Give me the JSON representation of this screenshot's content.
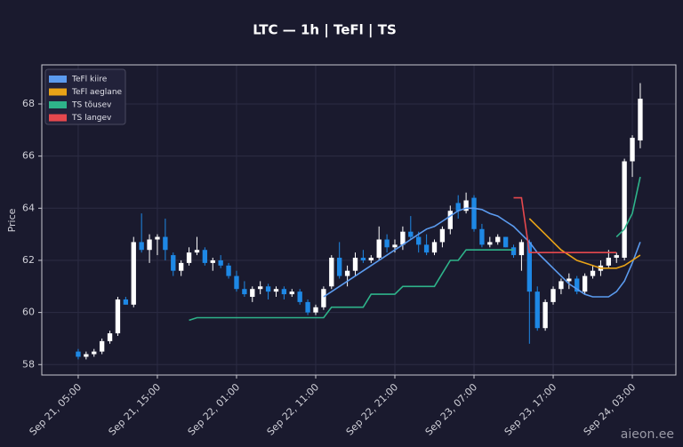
{
  "chart_data": {
    "type": "candlestick",
    "title": "LTC — 1h  |  TeFl  |  TS",
    "ylabel": "Price",
    "watermark": "aieon.ee",
    "grid": true,
    "legend": "upper left",
    "up_color": "#ffffff",
    "down_color": "#1e88e5",
    "xlim": [
      -4.6,
      75.5
    ],
    "xticks": [
      {
        "value": 0,
        "label": "Sep 21, 05:00"
      },
      {
        "value": 10,
        "label": "Sep 21, 15:00"
      },
      {
        "value": 20,
        "label": "Sep 22, 01:00"
      },
      {
        "value": 30,
        "label": "Sep 22, 11:00"
      },
      {
        "value": 40,
        "label": "Sep 22, 21:00"
      },
      {
        "value": 50,
        "label": "Sep 23, 07:00"
      },
      {
        "value": 60,
        "label": "Sep 23, 17:00"
      },
      {
        "value": 70,
        "label": "Sep 24, 03:00"
      }
    ],
    "ylim": [
      57.6,
      69.5
    ],
    "yticks": [
      58,
      60,
      62,
      64,
      66,
      68
    ],
    "open": [
      58.5,
      58.3,
      58.4,
      58.5,
      58.9,
      59.2,
      60.5,
      60.3,
      62.7,
      62.4,
      62.8,
      62.9,
      62.2,
      61.6,
      61.9,
      62.3,
      62.4,
      61.9,
      62.0,
      61.8,
      61.4,
      60.9,
      60.6,
      60.9,
      61.0,
      60.8,
      60.9,
      60.7,
      60.8,
      60.4,
      60.0,
      60.2,
      61.0,
      62.1,
      61.4,
      61.6,
      62.1,
      62.0,
      62.1,
      62.8,
      62.5,
      62.6,
      63.1,
      62.9,
      62.6,
      62.3,
      62.7,
      63.2,
      64.2,
      63.9,
      64.4,
      63.2,
      62.6,
      62.7,
      62.9,
      62.5,
      62.2,
      62.7,
      60.8,
      59.4,
      60.4,
      60.9,
      61.2,
      61.3,
      60.8,
      61.4,
      61.6,
      61.8,
      62.1,
      62.1,
      65.8,
      66.6
    ],
    "high": [
      58.6,
      58.5,
      58.6,
      59.0,
      59.3,
      60.6,
      60.6,
      62.9,
      63.8,
      63.0,
      63.0,
      63.6,
      62.3,
      62.0,
      62.5,
      62.9,
      62.5,
      62.1,
      62.2,
      61.9,
      61.6,
      61.2,
      61.0,
      61.2,
      61.1,
      61.0,
      61.0,
      60.9,
      60.9,
      60.5,
      60.3,
      61.0,
      62.2,
      62.7,
      61.8,
      62.3,
      62.4,
      62.2,
      63.3,
      63.0,
      62.8,
      63.3,
      63.7,
      63.1,
      63.0,
      62.8,
      63.3,
      64.1,
      64.5,
      64.6,
      64.5,
      63.4,
      62.9,
      63.0,
      62.9,
      62.6,
      62.8,
      62.8,
      61.0,
      60.5,
      61.0,
      61.3,
      61.5,
      61.4,
      61.5,
      61.8,
      62.0,
      62.4,
      62.3,
      65.9,
      66.8,
      68.8
    ],
    "low": [
      58.2,
      58.2,
      58.3,
      58.4,
      58.8,
      59.1,
      60.3,
      60.2,
      62.3,
      61.9,
      62.2,
      62.0,
      61.4,
      61.4,
      61.8,
      62.2,
      61.8,
      61.6,
      61.7,
      61.3,
      60.8,
      60.6,
      60.4,
      60.7,
      60.5,
      60.6,
      60.5,
      60.6,
      60.3,
      59.9,
      59.9,
      60.1,
      60.9,
      61.3,
      61.0,
      61.4,
      61.9,
      61.9,
      62.0,
      62.3,
      62.3,
      62.4,
      62.8,
      62.3,
      62.2,
      62.2,
      62.5,
      63.0,
      63.6,
      63.8,
      63.1,
      62.5,
      62.5,
      62.6,
      62.5,
      62.1,
      61.6,
      58.8,
      59.3,
      59.3,
      60.3,
      60.7,
      60.9,
      60.7,
      60.7,
      61.3,
      61.4,
      61.7,
      61.9,
      62.0,
      65.2,
      66.3
    ],
    "close": [
      58.3,
      58.4,
      58.5,
      58.9,
      59.2,
      60.5,
      60.3,
      62.7,
      62.4,
      62.8,
      62.9,
      62.4,
      61.6,
      61.9,
      62.3,
      62.4,
      61.9,
      62.0,
      61.8,
      61.4,
      60.9,
      60.7,
      60.9,
      61.0,
      60.8,
      60.9,
      60.7,
      60.8,
      60.4,
      60.0,
      60.2,
      60.9,
      62.1,
      61.4,
      61.6,
      62.1,
      62.0,
      62.1,
      62.8,
      62.5,
      62.6,
      63.1,
      62.9,
      62.6,
      62.3,
      62.7,
      63.2,
      63.9,
      63.9,
      64.3,
      63.2,
      62.6,
      62.7,
      62.9,
      62.5,
      62.2,
      62.7,
      60.8,
      59.4,
      60.4,
      60.9,
      61.2,
      61.3,
      60.8,
      61.4,
      61.6,
      61.8,
      62.1,
      62.2,
      65.8,
      66.7,
      68.2
    ],
    "series": [
      {
        "name": "TeFl kiire",
        "color": "#5b9bef",
        "values": [
          null,
          null,
          null,
          null,
          null,
          null,
          null,
          null,
          null,
          null,
          null,
          null,
          null,
          null,
          null,
          null,
          null,
          null,
          null,
          null,
          null,
          null,
          null,
          null,
          null,
          null,
          null,
          null,
          null,
          null,
          null,
          60.6,
          60.8,
          61.0,
          61.2,
          61.4,
          61.6,
          61.8,
          62.0,
          62.2,
          62.4,
          62.6,
          62.8,
          63.0,
          63.2,
          63.3,
          63.5,
          63.7,
          63.9,
          64.0,
          64.0,
          63.95,
          63.8,
          63.7,
          63.5,
          63.3,
          63.0,
          62.7,
          62.3,
          62.0,
          61.7,
          61.4,
          61.1,
          60.9,
          60.7,
          60.6,
          60.6,
          60.6,
          60.8,
          61.2,
          61.9,
          62.7
        ]
      },
      {
        "name": "TeFl aeglane",
        "color": "#e8a317",
        "values": [
          null,
          null,
          null,
          null,
          null,
          null,
          null,
          null,
          null,
          null,
          null,
          null,
          null,
          null,
          null,
          null,
          null,
          null,
          null,
          null,
          null,
          null,
          null,
          null,
          null,
          null,
          null,
          null,
          null,
          null,
          null,
          null,
          null,
          null,
          null,
          null,
          null,
          null,
          null,
          null,
          null,
          null,
          null,
          null,
          null,
          null,
          null,
          null,
          null,
          null,
          null,
          null,
          null,
          null,
          null,
          null,
          null,
          63.6,
          63.3,
          63.0,
          62.7,
          62.4,
          62.2,
          62.0,
          61.9,
          61.8,
          61.7,
          61.7,
          61.7,
          61.8,
          62.0,
          62.2
        ]
      },
      {
        "name": "TS tõusev",
        "color": "#2eb38a",
        "values": [
          null,
          null,
          null,
          null,
          null,
          null,
          null,
          null,
          null,
          null,
          null,
          null,
          null,
          null,
          59.7,
          59.8,
          59.8,
          59.8,
          59.8,
          59.8,
          59.8,
          59.8,
          59.8,
          59.8,
          59.8,
          59.8,
          59.8,
          59.8,
          59.8,
          59.8,
          59.8,
          59.8,
          60.2,
          60.2,
          60.2,
          60.2,
          60.2,
          60.7,
          60.7,
          60.7,
          60.7,
          61.0,
          61.0,
          61.0,
          61.0,
          61.0,
          61.5,
          62.0,
          62.0,
          62.4,
          62.4,
          62.4,
          62.4,
          62.4,
          62.4,
          62.4,
          null,
          null,
          null,
          null,
          null,
          null,
          null,
          null,
          null,
          null,
          null,
          null,
          62.9,
          63.2,
          63.8,
          65.2
        ]
      },
      {
        "name": "TS langev",
        "color": "#e5484d",
        "values": [
          null,
          null,
          null,
          null,
          null,
          null,
          null,
          null,
          null,
          null,
          null,
          null,
          null,
          null,
          null,
          null,
          null,
          null,
          null,
          null,
          null,
          null,
          null,
          null,
          null,
          null,
          null,
          null,
          null,
          null,
          null,
          null,
          null,
          null,
          null,
          null,
          null,
          null,
          null,
          null,
          null,
          null,
          null,
          null,
          null,
          null,
          null,
          null,
          null,
          null,
          null,
          null,
          null,
          null,
          null,
          64.4,
          64.4,
          62.3,
          62.3,
          62.3,
          62.3,
          62.3,
          62.3,
          62.3,
          62.3,
          62.3,
          62.3,
          62.3,
          62.3,
          null,
          null,
          null
        ]
      }
    ]
  }
}
